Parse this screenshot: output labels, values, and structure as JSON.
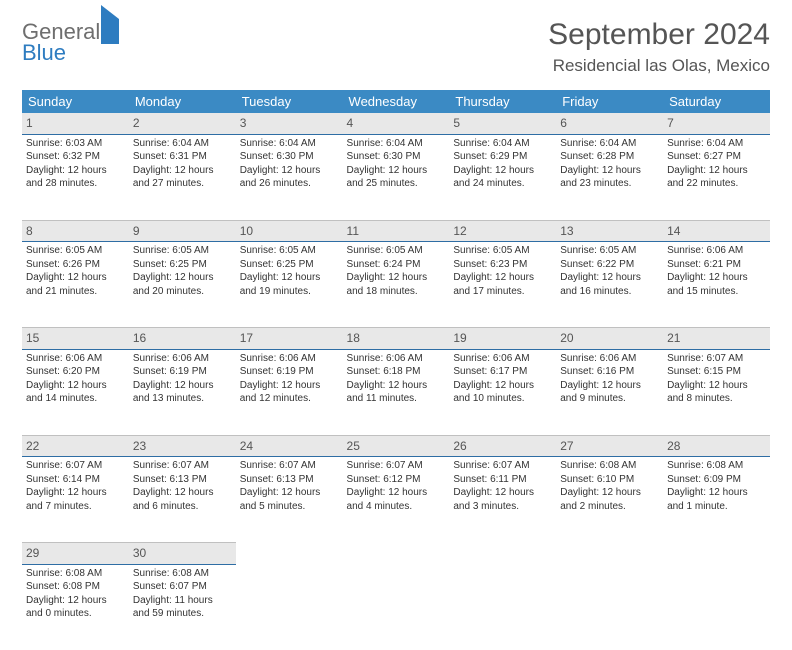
{
  "logo": {
    "line1": "General",
    "line2": "Blue"
  },
  "title": "September 2024",
  "location": "Residencial las Olas, Mexico",
  "weekdays": [
    "Sunday",
    "Monday",
    "Tuesday",
    "Wednesday",
    "Thursday",
    "Friday",
    "Saturday"
  ],
  "colors": {
    "header_bg": "#3b8ac4",
    "daynum_bg": "#e8e8e8",
    "accent": "#2e7cc0"
  },
  "weeks": [
    [
      {
        "n": "1",
        "sr": "6:03 AM",
        "ss": "6:32 PM",
        "dl": "12 hours and 28 minutes."
      },
      {
        "n": "2",
        "sr": "6:04 AM",
        "ss": "6:31 PM",
        "dl": "12 hours and 27 minutes."
      },
      {
        "n": "3",
        "sr": "6:04 AM",
        "ss": "6:30 PM",
        "dl": "12 hours and 26 minutes."
      },
      {
        "n": "4",
        "sr": "6:04 AM",
        "ss": "6:30 PM",
        "dl": "12 hours and 25 minutes."
      },
      {
        "n": "5",
        "sr": "6:04 AM",
        "ss": "6:29 PM",
        "dl": "12 hours and 24 minutes."
      },
      {
        "n": "6",
        "sr": "6:04 AM",
        "ss": "6:28 PM",
        "dl": "12 hours and 23 minutes."
      },
      {
        "n": "7",
        "sr": "6:04 AM",
        "ss": "6:27 PM",
        "dl": "12 hours and 22 minutes."
      }
    ],
    [
      {
        "n": "8",
        "sr": "6:05 AM",
        "ss": "6:26 PM",
        "dl": "12 hours and 21 minutes."
      },
      {
        "n": "9",
        "sr": "6:05 AM",
        "ss": "6:25 PM",
        "dl": "12 hours and 20 minutes."
      },
      {
        "n": "10",
        "sr": "6:05 AM",
        "ss": "6:25 PM",
        "dl": "12 hours and 19 minutes."
      },
      {
        "n": "11",
        "sr": "6:05 AM",
        "ss": "6:24 PM",
        "dl": "12 hours and 18 minutes."
      },
      {
        "n": "12",
        "sr": "6:05 AM",
        "ss": "6:23 PM",
        "dl": "12 hours and 17 minutes."
      },
      {
        "n": "13",
        "sr": "6:05 AM",
        "ss": "6:22 PM",
        "dl": "12 hours and 16 minutes."
      },
      {
        "n": "14",
        "sr": "6:06 AM",
        "ss": "6:21 PM",
        "dl": "12 hours and 15 minutes."
      }
    ],
    [
      {
        "n": "15",
        "sr": "6:06 AM",
        "ss": "6:20 PM",
        "dl": "12 hours and 14 minutes."
      },
      {
        "n": "16",
        "sr": "6:06 AM",
        "ss": "6:19 PM",
        "dl": "12 hours and 13 minutes."
      },
      {
        "n": "17",
        "sr": "6:06 AM",
        "ss": "6:19 PM",
        "dl": "12 hours and 12 minutes."
      },
      {
        "n": "18",
        "sr": "6:06 AM",
        "ss": "6:18 PM",
        "dl": "12 hours and 11 minutes."
      },
      {
        "n": "19",
        "sr": "6:06 AM",
        "ss": "6:17 PM",
        "dl": "12 hours and 10 minutes."
      },
      {
        "n": "20",
        "sr": "6:06 AM",
        "ss": "6:16 PM",
        "dl": "12 hours and 9 minutes."
      },
      {
        "n": "21",
        "sr": "6:07 AM",
        "ss": "6:15 PM",
        "dl": "12 hours and 8 minutes."
      }
    ],
    [
      {
        "n": "22",
        "sr": "6:07 AM",
        "ss": "6:14 PM",
        "dl": "12 hours and 7 minutes."
      },
      {
        "n": "23",
        "sr": "6:07 AM",
        "ss": "6:13 PM",
        "dl": "12 hours and 6 minutes."
      },
      {
        "n": "24",
        "sr": "6:07 AM",
        "ss": "6:13 PM",
        "dl": "12 hours and 5 minutes."
      },
      {
        "n": "25",
        "sr": "6:07 AM",
        "ss": "6:12 PM",
        "dl": "12 hours and 4 minutes."
      },
      {
        "n": "26",
        "sr": "6:07 AM",
        "ss": "6:11 PM",
        "dl": "12 hours and 3 minutes."
      },
      {
        "n": "27",
        "sr": "6:08 AM",
        "ss": "6:10 PM",
        "dl": "12 hours and 2 minutes."
      },
      {
        "n": "28",
        "sr": "6:08 AM",
        "ss": "6:09 PM",
        "dl": "12 hours and 1 minute."
      }
    ],
    [
      {
        "n": "29",
        "sr": "6:08 AM",
        "ss": "6:08 PM",
        "dl": "12 hours and 0 minutes."
      },
      {
        "n": "30",
        "sr": "6:08 AM",
        "ss": "6:07 PM",
        "dl": "11 hours and 59 minutes."
      },
      null,
      null,
      null,
      null,
      null
    ]
  ]
}
